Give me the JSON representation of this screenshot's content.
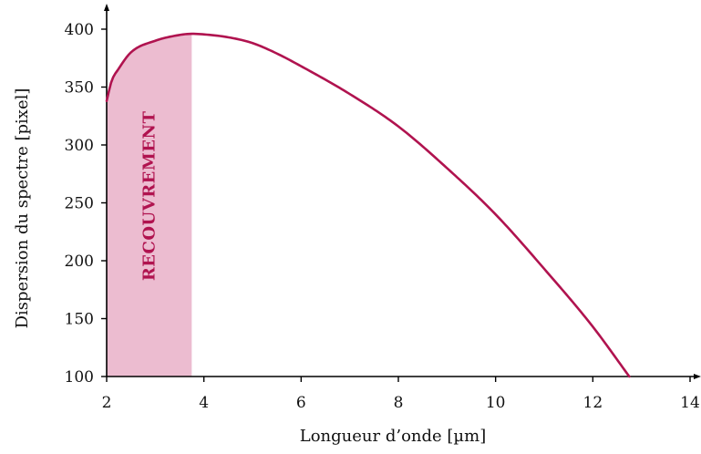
{
  "chart_data": {
    "type": "line",
    "title": "",
    "xlabel": "Longueur d’onde [µm]",
    "ylabel": "Dispersion du spectre [pixel]",
    "xlim": [
      2,
      14
    ],
    "ylim": [
      100,
      400
    ],
    "x_ticks": [
      "2",
      "4",
      "6",
      "8",
      "10",
      "12",
      "14"
    ],
    "y_ticks": [
      "100",
      "150",
      "200",
      "250",
      "300",
      "350",
      "400"
    ],
    "grid": false,
    "legend": "none",
    "colors": {
      "line": "#b0134f",
      "region_fill": "#ecbcd0",
      "annotation_text": "#b0134f",
      "axis": "#000000"
    },
    "series": [
      {
        "points": [
          [
            2.0,
            338
          ],
          [
            2.1,
            355
          ],
          [
            2.25,
            366
          ],
          [
            2.5,
            380
          ],
          [
            3.0,
            390
          ],
          [
            3.5,
            395
          ],
          [
            3.75,
            396
          ],
          [
            4.0,
            395.5
          ],
          [
            4.5,
            393
          ],
          [
            5.0,
            388
          ],
          [
            5.5,
            379
          ],
          [
            6.0,
            368
          ],
          [
            7.0,
            344
          ],
          [
            8.0,
            316
          ],
          [
            9.0,
            280
          ],
          [
            10.0,
            240
          ],
          [
            11.0,
            193
          ],
          [
            12.0,
            143
          ],
          [
            12.75,
            100
          ]
        ]
      }
    ],
    "shaded_region": {
      "x_range": [
        2,
        3.75
      ],
      "label": "RECOUVREMENT"
    }
  }
}
